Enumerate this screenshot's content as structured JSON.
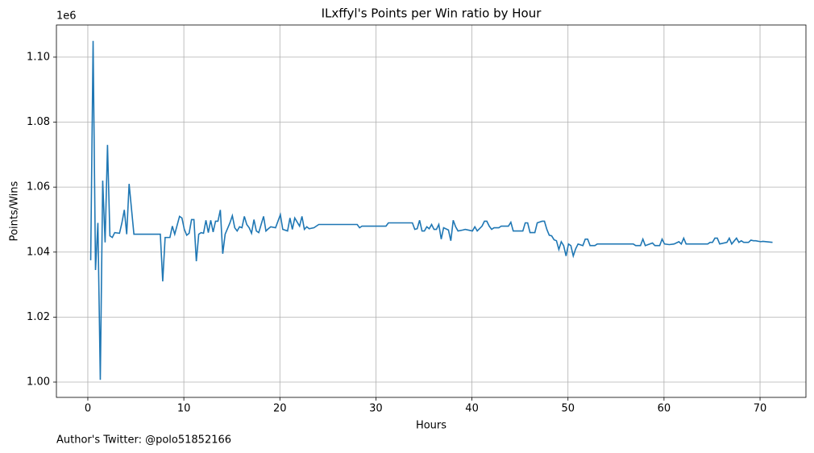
{
  "chart_data": {
    "type": "line",
    "title": "ILxffyl's Points per Win ratio by Hour",
    "x_label": "Hours",
    "y_label": "Points/Wins",
    "y_offset_label": "1e6",
    "annotation": "Author's Twitter: @polo51852166",
    "grid": true,
    "xlim": [
      -3.27,
      74.78
    ],
    "ylim": [
      995290,
      1109900
    ],
    "xticks": [
      0,
      10,
      20,
      30,
      40,
      50,
      60,
      70
    ],
    "yticks": [
      {
        "value": 1000000,
        "label": "1.00"
      },
      {
        "value": 1020000,
        "label": "1.02"
      },
      {
        "value": 1040000,
        "label": "1.04"
      },
      {
        "value": 1060000,
        "label": "1.06"
      },
      {
        "value": 1080000,
        "label": "1.08"
      },
      {
        "value": 1100000,
        "label": "1.10"
      }
    ],
    "x": [
      0.3,
      0.55,
      0.8,
      1.05,
      1.3,
      1.55,
      1.8,
      2.05,
      2.3,
      2.55,
      2.8,
      3.3,
      3.55,
      3.8,
      4.05,
      4.3,
      4.8,
      7.55,
      7.8,
      8.05,
      8.55,
      8.8,
      9.05,
      9.55,
      9.8,
      10.05,
      10.3,
      10.55,
      10.8,
      11.05,
      11.3,
      11.55,
      11.8,
      12.05,
      12.3,
      12.55,
      12.8,
      13.05,
      13.3,
      13.55,
      13.8,
      14.05,
      14.3,
      14.8,
      15.05,
      15.3,
      15.55,
      15.8,
      16.05,
      16.3,
      16.55,
      16.8,
      17.05,
      17.3,
      17.55,
      17.8,
      18.05,
      18.3,
      18.55,
      18.8,
      19.05,
      19.55,
      20.05,
      20.3,
      20.8,
      21.05,
      21.3,
      21.55,
      22.05,
      22.3,
      22.55,
      22.8,
      23.05,
      23.55,
      24.05,
      28.05,
      28.3,
      28.55,
      31.05,
      31.3,
      33.8,
      34.05,
      34.3,
      34.55,
      34.8,
      35.05,
      35.3,
      35.55,
      35.8,
      36.05,
      36.3,
      36.55,
      36.8,
      37.05,
      37.55,
      37.8,
      38.05,
      38.3,
      38.55,
      39.05,
      39.3,
      40.05,
      40.3,
      40.55,
      41.05,
      41.3,
      41.55,
      41.8,
      42.05,
      42.3,
      42.8,
      43.05,
      43.8,
      44.05,
      44.3,
      45.3,
      45.55,
      45.8,
      46.05,
      46.55,
      46.8,
      47.3,
      47.55,
      47.8,
      48.05,
      48.3,
      48.55,
      48.8,
      49.05,
      49.3,
      49.55,
      49.8,
      50.05,
      50.3,
      50.55,
      50.8,
      51.05,
      51.55,
      51.8,
      52.05,
      52.3,
      52.8,
      53.05,
      56.8,
      57.05,
      57.55,
      57.8,
      58.05,
      58.8,
      59.05,
      59.55,
      59.8,
      60.05,
      60.55,
      61.05,
      61.55,
      61.8,
      62.05,
      62.3,
      64.55,
      64.8,
      65.05,
      65.3,
      65.55,
      65.8,
      66.55,
      66.8,
      67.05,
      67.55,
      67.8,
      68.05,
      68.3,
      68.8,
      69.05,
      69.3,
      69.55,
      70.05,
      70.3,
      71.3
    ],
    "series": [
      {
        "color": "#1f77b4",
        "values": [
          1037500,
          1105000,
          1034500,
          1049000,
          1000700,
          1062000,
          1043000,
          1073000,
          1045000,
          1044500,
          1046000,
          1045800,
          1049000,
          1053000,
          1045500,
          1061000,
          1045500,
          1045500,
          1031000,
          1044500,
          1044500,
          1048000,
          1045500,
          1051000,
          1050500,
          1047000,
          1045200,
          1045800,
          1050000,
          1050000,
          1037200,
          1045500,
          1046000,
          1045800,
          1049800,
          1046000,
          1049800,
          1046200,
          1049500,
          1049500,
          1053000,
          1039500,
          1045500,
          1049000,
          1051200,
          1047500,
          1046500,
          1047800,
          1047500,
          1051000,
          1048500,
          1047500,
          1045800,
          1050000,
          1046500,
          1046000,
          1048500,
          1051000,
          1046500,
          1047200,
          1047800,
          1047500,
          1051500,
          1047000,
          1046500,
          1050500,
          1047000,
          1050500,
          1048000,
          1051000,
          1047000,
          1047800,
          1047200,
          1047500,
          1048500,
          1048500,
          1047500,
          1048000,
          1048000,
          1049000,
          1049000,
          1047000,
          1047200,
          1049800,
          1046500,
          1046500,
          1047800,
          1047200,
          1048500,
          1047000,
          1047000,
          1048500,
          1044000,
          1047500,
          1046800,
          1043500,
          1049800,
          1047800,
          1046500,
          1046800,
          1047000,
          1046500,
          1047800,
          1046500,
          1048000,
          1049500,
          1049500,
          1048000,
          1047000,
          1047500,
          1047500,
          1048000,
          1048000,
          1049200,
          1046500,
          1046500,
          1049000,
          1049000,
          1046000,
          1046000,
          1049000,
          1049500,
          1049500,
          1047000,
          1045200,
          1045000,
          1043800,
          1043500,
          1040800,
          1043200,
          1042000,
          1038800,
          1042500,
          1042000,
          1038800,
          1041000,
          1042500,
          1042000,
          1044000,
          1044000,
          1042000,
          1042000,
          1042500,
          1042500,
          1042000,
          1042000,
          1044000,
          1042000,
          1042800,
          1042000,
          1042000,
          1044000,
          1042500,
          1042300,
          1042500,
          1043200,
          1042500,
          1044300,
          1042500,
          1042500,
          1043000,
          1043000,
          1044300,
          1044300,
          1042500,
          1043000,
          1044300,
          1042500,
          1044300,
          1043000,
          1043500,
          1043000,
          1043000,
          1043700,
          1043500,
          1043500,
          1043200,
          1043300,
          1043000
        ]
      }
    ]
  }
}
